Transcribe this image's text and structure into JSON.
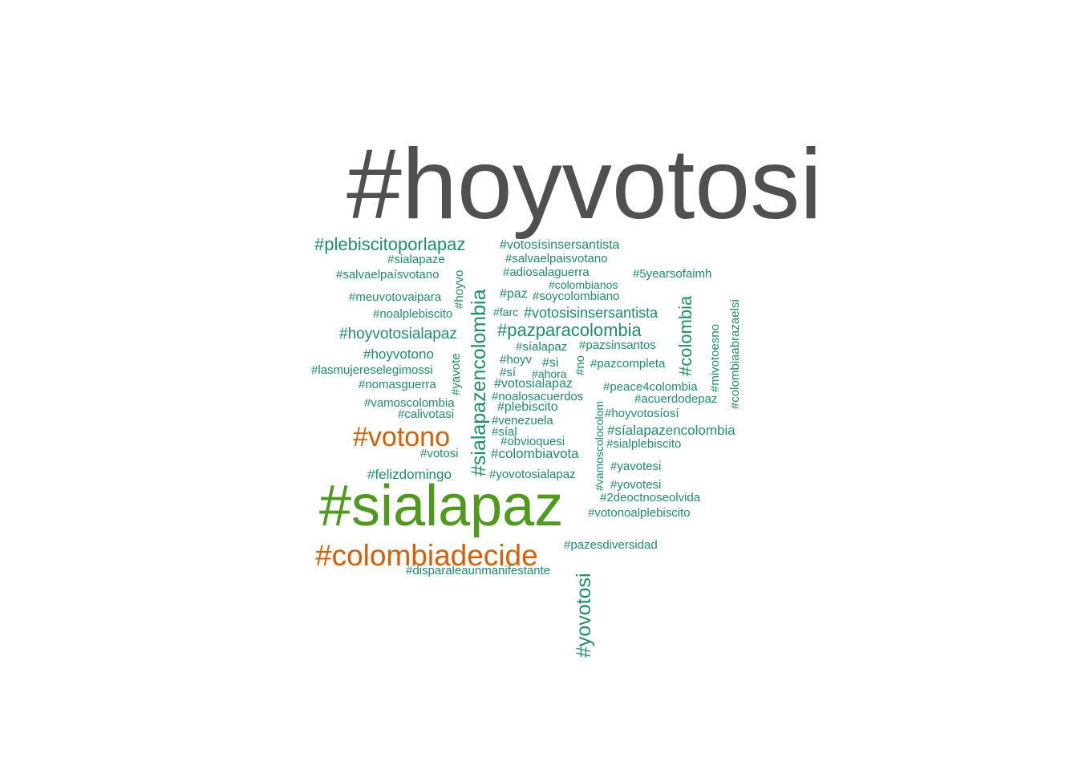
{
  "colors": {
    "gray": "#505050",
    "green": "#4e9a1a",
    "orange": "#d95f02",
    "teal": "#1b8f6f"
  },
  "words": [
    "#hoyvotosi",
    "#sialapaz",
    "#votono",
    "#colombiadecide",
    "#plebiscitoporlapaz",
    "#sialapaze",
    "#salvaelpaísvotano",
    "#meuvotovaipara",
    "#noalplebiscito",
    "#hoyvotosialapaz",
    "#hoyvotono",
    "#lasmujereselegimossi",
    "#nomasguerra",
    "#vamoscolombia",
    "#calivotasi",
    "#votosi",
    "#felizdomingo",
    "#votosísinsersantista",
    "#salvaelpaisvotano",
    "#adiosalaguerra",
    "#colombianos",
    "#5yearsofaimh",
    "#paz",
    "#soycolombiano",
    "#farc",
    "#votosisinsersantista",
    "#pazparacolombia",
    "#síalapaz",
    "#pazsinsantos",
    "#hoyv",
    "#si",
    "#sí",
    "#ahora",
    "#pazcompleta",
    "#votosialapaz",
    "#peace4colombia",
    "#noalosacuerdos",
    "#acuerdodepaz",
    "#plebiscito",
    "#hoyvotosíosí",
    "#venezuela",
    "#síal",
    "#síalapazencolombia",
    "#obvioquesi",
    "#sialplebiscito",
    "#colombiavota",
    "#yavotesi",
    "#yovotosialapaz",
    "#yovotesi",
    "#2deoctnoseolvida",
    "#votonoalplebiscito",
    "#pazesdiversidad",
    "#disparaleaunmanifestante",
    "#hoyvo",
    "#sialapazencolombia",
    "#yavote",
    "#no",
    "#vamoscolocolom",
    "#colombia",
    "#mivotoesno",
    "#colombiaabrazaelsi",
    "#yovotosi"
  ]
}
